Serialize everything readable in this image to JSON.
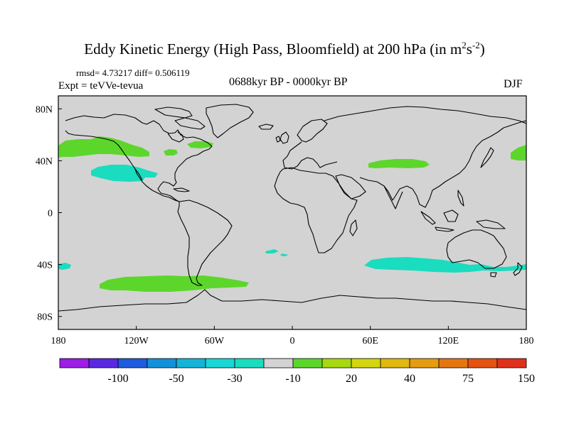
{
  "title_main": "Eddy Kinetic Energy (High Pass, Bloomfield) at 200 hPa (in m",
  "title_sup1": "2",
  "title_s": "s",
  "title_sup2": "-2",
  "title_close": ")",
  "stats_text": "rmsd= 4.73217 diff= 0.506119",
  "expt_text": "Expt = teVVe-tevua",
  "period_text": "0688kyr BP - 0000kyr BP",
  "season_text": "DJF",
  "map": {
    "lon_range": [
      -180,
      180
    ],
    "lat_range": [
      -90,
      90
    ],
    "background_color": "#d3d3d3",
    "x_ticks": [
      {
        "value": -180,
        "label": "180"
      },
      {
        "value": -120,
        "label": "120W"
      },
      {
        "value": -60,
        "label": "60W"
      },
      {
        "value": 0,
        "label": "0"
      },
      {
        "value": 60,
        "label": "60E"
      },
      {
        "value": 120,
        "label": "120E"
      },
      {
        "value": 180,
        "label": "180"
      }
    ],
    "y_ticks": [
      {
        "value": 80,
        "label": "80N"
      },
      {
        "value": 40,
        "label": "40N"
      },
      {
        "value": 0,
        "label": "0"
      },
      {
        "value": -40,
        "label": "40S"
      },
      {
        "value": -80,
        "label": "80S"
      }
    ],
    "anomaly_regions": [
      {
        "sign": "positive",
        "color": "#5dd62c",
        "approx_lon": [
          -180,
          -150
        ],
        "approx_lat": [
          38,
          51
        ]
      },
      {
        "sign": "positive",
        "color": "#5dd62c",
        "approx_lon": [
          -82,
          -75
        ],
        "approx_lat": [
          43,
          46
        ]
      },
      {
        "sign": "positive",
        "color": "#5dd62c",
        "approx_lon": [
          -68,
          -54
        ],
        "approx_lat": [
          52,
          56
        ]
      },
      {
        "sign": "positive",
        "color": "#5dd62c",
        "approx_lon": [
          55,
          98
        ],
        "approx_lat": [
          35,
          41
        ]
      },
      {
        "sign": "positive",
        "color": "#5dd62c",
        "approx_lon": [
          165,
          180
        ],
        "approx_lat": [
          39,
          48
        ]
      },
      {
        "sign": "positive",
        "color": "#5dd62c",
        "approx_lon": [
          -148,
          -35
        ],
        "approx_lat": [
          -60,
          -49
        ]
      },
      {
        "sign": "negative",
        "color": "#1adcbf",
        "approx_lon": [
          -153,
          -105
        ],
        "approx_lat": [
          21,
          34
        ]
      },
      {
        "sign": "negative",
        "color": "#1adcbf",
        "approx_lon": [
          -21,
          -3
        ],
        "approx_lat": [
          -32,
          -26
        ]
      },
      {
        "sign": "negative",
        "color": "#1adcbf",
        "approx_lon": [
          55,
          180
        ],
        "approx_lat": [
          -47,
          -34
        ]
      },
      {
        "sign": "negative",
        "color": "#1adcbf",
        "approx_lon": [
          -180,
          -174
        ],
        "approx_lat": [
          -43,
          -39
        ]
      }
    ]
  },
  "colorbar": {
    "colors": [
      "#9b1de6",
      "#5a28e0",
      "#1f5bdc",
      "#1490d8",
      "#14b4d8",
      "#1ad6d6",
      "#1adcbf",
      "#d3d3d3",
      "#5dd62c",
      "#a6d90f",
      "#d3d60e",
      "#e0b80f",
      "#e59c10",
      "#e47612",
      "#e45212",
      "#e0301b"
    ],
    "labels": [
      {
        "after_box": 2,
        "text": "-100"
      },
      {
        "after_box": 4,
        "text": "-50"
      },
      {
        "after_box": 6,
        "text": "-30"
      },
      {
        "after_box": 8,
        "text": "-10"
      },
      {
        "after_box": 10,
        "text": "20"
      },
      {
        "after_box": 12,
        "text": "40"
      },
      {
        "after_box": 14,
        "text": "75"
      },
      {
        "after_box": 16,
        "text": "150"
      }
    ]
  }
}
